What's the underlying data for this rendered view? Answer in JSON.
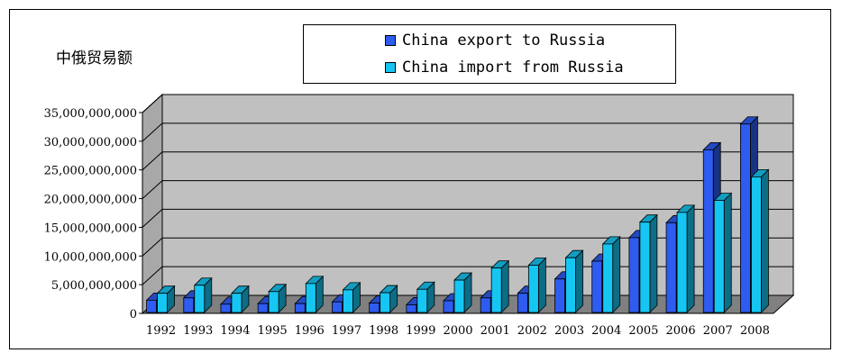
{
  "chart_data": {
    "type": "bar",
    "title": "中俄贸易额",
    "xlabel": "",
    "ylabel": "",
    "categories": [
      "1992",
      "1993",
      "1994",
      "1995",
      "1996",
      "1997",
      "1998",
      "1999",
      "2000",
      "2001",
      "2002",
      "2003",
      "2004",
      "2005",
      "2006",
      "2007",
      "2008"
    ],
    "series": [
      {
        "name": "China export to Russia",
        "color": "#2e5cf0",
        "values": [
          2300000000,
          2700000000,
          1600000000,
          1700000000,
          1700000000,
          2000000000,
          1800000000,
          1500000000,
          2200000000,
          2700000000,
          3500000000,
          6000000000,
          9100000000,
          13200000000,
          15800000000,
          28500000000,
          33000000000
        ]
      },
      {
        "name": "China import from Russia",
        "color": "#16c6f2",
        "values": [
          3500000000,
          4900000000,
          3500000000,
          3800000000,
          5200000000,
          4100000000,
          3600000000,
          4200000000,
          5800000000,
          7900000000,
          8400000000,
          9700000000,
          12100000000,
          15900000000,
          17600000000,
          19700000000,
          23800000000
        ]
      }
    ],
    "ylim": [
      0,
      35000000000
    ],
    "yticks": [
      "0",
      "5,000,000,000",
      "10,000,000,000",
      "15,000,000,000",
      "20,000,000,000",
      "25,000,000,000",
      "30,000,000,000",
      "35,000,000,000"
    ],
    "grid": true,
    "legend": "top-center"
  },
  "colors": {
    "wall": "#c0c0c0",
    "wall_side": "#a8a8a8",
    "floor": "#808080"
  }
}
